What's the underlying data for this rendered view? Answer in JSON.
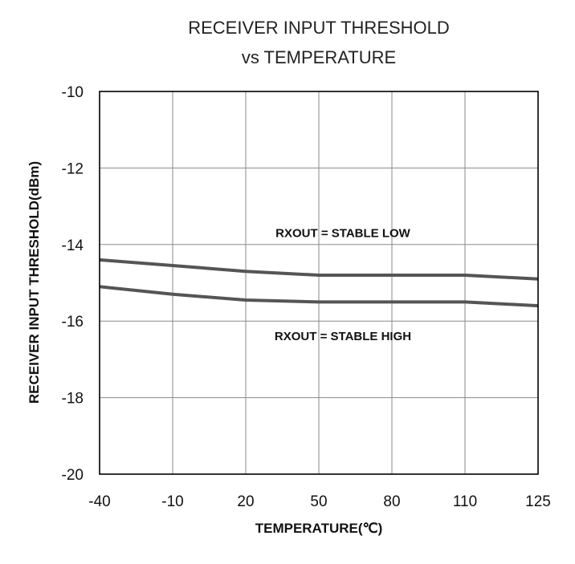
{
  "chart_data": {
    "type": "line",
    "title_line1": "RECEIVER INPUT THRESHOLD",
    "title_line2": "vs TEMPERATURE",
    "xlabel": "TEMPERATURE(℃)",
    "ylabel": "RECEIVER INPUT THRESHOLD(dBm)",
    "categories": [
      "-40",
      "-10",
      "20",
      "50",
      "80",
      "110",
      "125"
    ],
    "x_axis": "categorical, evenly spaced",
    "ylim": [
      -20,
      -10
    ],
    "yticks": [
      "-10",
      "-12",
      "-14",
      "-16",
      "-18",
      "-20"
    ],
    "ytick_values": [
      -10,
      -12,
      -14,
      -16,
      -18,
      -20
    ],
    "grid": true,
    "line_color": "#555555",
    "series": [
      {
        "values": [
          -14.4,
          -14.55,
          -14.7,
          -14.8,
          -14.8,
          -14.8,
          -14.9
        ]
      },
      {
        "values": [
          -15.1,
          -15.3,
          -15.45,
          -15.5,
          -15.5,
          -15.5,
          -15.6
        ]
      }
    ],
    "annotations": [
      {
        "text": "RXOUT = STABLE LOW",
        "y": -13.8
      },
      {
        "text": "RXOUT = STABLE HIGH",
        "y": -16.5
      }
    ]
  }
}
